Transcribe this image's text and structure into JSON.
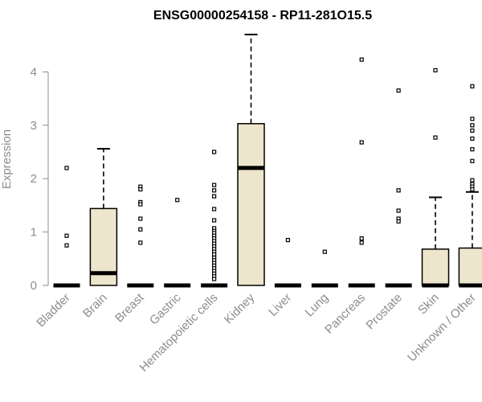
{
  "chart_data": {
    "type": "box",
    "title": "ENSG00000254158 - RP11-281O15.5",
    "ylabel": "Expression",
    "xlabel": "",
    "ylim": [
      0,
      4.75
    ],
    "yticks": [
      0,
      1,
      2,
      3,
      4
    ],
    "box_fill": "#ede6cd",
    "categories": [
      "Bladder",
      "Brain",
      "Breast",
      "Gastric",
      "Hematopoietic cells",
      "Kidney",
      "Liver",
      "Lung",
      "Pancreas",
      "Prostate",
      "Skin",
      "Unknown / Other"
    ],
    "boxes": [
      {
        "category": "Bladder",
        "q1": 0,
        "median": 0,
        "q3": 0,
        "whisker_low": 0,
        "whisker_high": 0,
        "outliers": [
          2.2,
          0.93,
          0.75
        ]
      },
      {
        "category": "Brain",
        "q1": 0,
        "median": 0.23,
        "q3": 1.44,
        "whisker_low": 0,
        "whisker_high": 2.56,
        "outliers": []
      },
      {
        "category": "Breast",
        "q1": 0,
        "median": 0,
        "q3": 0,
        "whisker_low": 0,
        "whisker_high": 0,
        "outliers": [
          1.85,
          1.8,
          1.56,
          1.52,
          1.25,
          1.05,
          0.8
        ]
      },
      {
        "category": "Gastric",
        "q1": 0,
        "median": 0,
        "q3": 0,
        "whisker_low": 0,
        "whisker_high": 0,
        "outliers": [
          1.6
        ]
      },
      {
        "category": "Hematopoietic cells",
        "q1": 0,
        "median": 0,
        "q3": 0,
        "whisker_low": 0,
        "whisker_high": 0,
        "outliers": [
          2.5,
          1.88,
          1.78,
          1.67,
          1.43,
          1.22,
          1.07,
          1.02,
          0.98,
          0.93,
          0.88,
          0.83,
          0.78,
          0.73,
          0.68,
          0.63,
          0.58,
          0.52,
          0.47,
          0.42,
          0.37,
          0.32,
          0.27,
          0.22,
          0.17,
          0.12
        ]
      },
      {
        "category": "Kidney",
        "q1": 0,
        "median": 2.2,
        "q3": 3.03,
        "whisker_low": 0,
        "whisker_high": 4.7,
        "outliers": []
      },
      {
        "category": "Liver",
        "q1": 0,
        "median": 0,
        "q3": 0,
        "whisker_low": 0,
        "whisker_high": 0,
        "outliers": [
          0.85
        ]
      },
      {
        "category": "Lung",
        "q1": 0,
        "median": 0,
        "q3": 0,
        "whisker_low": 0,
        "whisker_high": 0,
        "outliers": [
          0.63
        ]
      },
      {
        "category": "Pancreas",
        "q1": 0,
        "median": 0,
        "q3": 0,
        "whisker_low": 0,
        "whisker_high": 0,
        "outliers": [
          4.23,
          2.68,
          0.88,
          0.8
        ]
      },
      {
        "category": "Prostate",
        "q1": 0,
        "median": 0,
        "q3": 0,
        "whisker_low": 0,
        "whisker_high": 0,
        "outliers": [
          3.65,
          1.78,
          1.4,
          1.25,
          1.2
        ]
      },
      {
        "category": "Skin",
        "q1": 0,
        "median": 0,
        "q3": 0.68,
        "whisker_low": 0,
        "whisker_high": 1.65,
        "outliers": [
          4.03,
          2.77
        ]
      },
      {
        "category": "Unknown / Other",
        "q1": 0,
        "median": 0,
        "q3": 0.7,
        "whisker_low": 0,
        "whisker_high": 1.75,
        "outliers": [
          3.73,
          3.12,
          3.0,
          2.9,
          2.75,
          2.55,
          2.33,
          1.97,
          1.9,
          1.85,
          1.8
        ]
      }
    ]
  }
}
